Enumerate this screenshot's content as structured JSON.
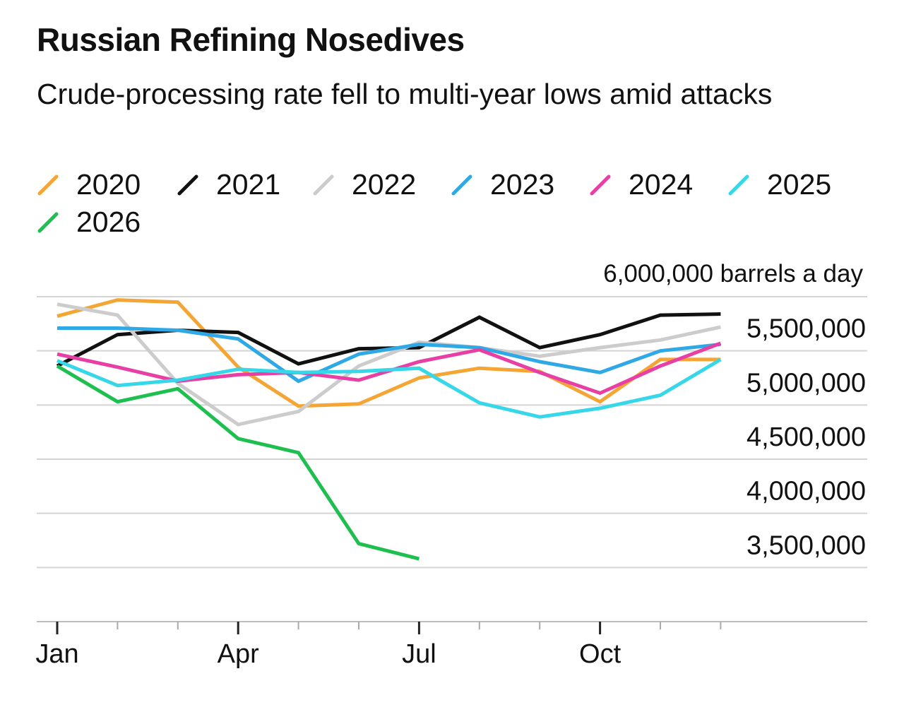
{
  "chart_data": {
    "type": "line",
    "title": "Russian Refining Nosedives",
    "subtitle": "Crude-processing rate fell to multi-year lows amid attacks",
    "unit_label": "6,000,000 barrels a day",
    "x_tick_labels": [
      "Jan",
      "Apr",
      "Jul",
      "Oct"
    ],
    "x_months": [
      "Jan",
      "Feb",
      "Mar",
      "Apr",
      "May",
      "Jun",
      "Jul",
      "Aug",
      "Sep",
      "Oct",
      "Nov",
      "Dec"
    ],
    "y_tick_labels": [
      "5,500,000",
      "5,000,000",
      "4,500,000",
      "4,000,000",
      "3,500,000"
    ],
    "ylim": [
      3000000,
      6000000
    ],
    "y_ticks": [
      6000000,
      5500000,
      5000000,
      4500000,
      4000000,
      3500000
    ],
    "grid": true,
    "legend_position": "top",
    "series": [
      {
        "name": "2020",
        "color": "#F4A534",
        "x": [
          "Jan",
          "Feb",
          "Mar",
          "Apr",
          "May",
          "Jun",
          "Jul",
          "Aug",
          "Sep",
          "Oct",
          "Nov",
          "Dec"
        ],
        "values": [
          5820000,
          5970000,
          5950000,
          5350000,
          4990000,
          5010000,
          5250000,
          5340000,
          5310000,
          5030000,
          5420000,
          5420000
        ]
      },
      {
        "name": "2021",
        "color": "#111111",
        "x": [
          "Jan",
          "Feb",
          "Mar",
          "Apr",
          "May",
          "Jun",
          "Jul",
          "Aug",
          "Sep",
          "Oct",
          "Nov",
          "Dec"
        ],
        "values": [
          5360000,
          5650000,
          5690000,
          5670000,
          5380000,
          5520000,
          5530000,
          5810000,
          5530000,
          5650000,
          5830000,
          5840000
        ]
      },
      {
        "name": "2022",
        "color": "#CCCCCC",
        "x": [
          "Jan",
          "Feb",
          "Mar",
          "Apr",
          "May",
          "Jun",
          "Jul",
          "Aug",
          "Sep",
          "Oct",
          "Nov",
          "Dec"
        ],
        "values": [
          5930000,
          5830000,
          5200000,
          4820000,
          4940000,
          5360000,
          5580000,
          5530000,
          5450000,
          5530000,
          5600000,
          5720000
        ]
      },
      {
        "name": "2023",
        "color": "#2FA8E6",
        "x": [
          "Jan",
          "Feb",
          "Mar",
          "Apr",
          "May",
          "Jun",
          "Jul",
          "Aug",
          "Sep",
          "Oct",
          "Nov",
          "Dec"
        ],
        "values": [
          5710000,
          5710000,
          5690000,
          5610000,
          5220000,
          5470000,
          5560000,
          5530000,
          5400000,
          5300000,
          5500000,
          5560000
        ]
      },
      {
        "name": "2024",
        "color": "#E83FA5",
        "x": [
          "Jan",
          "Feb",
          "Mar",
          "Apr",
          "May",
          "Jun",
          "Jul",
          "Aug",
          "Sep",
          "Oct",
          "Nov",
          "Dec"
        ],
        "values": [
          5470000,
          5350000,
          5220000,
          5280000,
          5300000,
          5230000,
          5400000,
          5510000,
          5300000,
          5110000,
          5360000,
          5570000
        ]
      },
      {
        "name": "2025",
        "color": "#36D7E8",
        "x": [
          "Jan",
          "Feb",
          "Mar",
          "Apr",
          "May",
          "Jun",
          "Jul",
          "Aug",
          "Sep",
          "Oct",
          "Nov",
          "Dec"
        ],
        "values": [
          5410000,
          5180000,
          5230000,
          5330000,
          5300000,
          5310000,
          5340000,
          5020000,
          4890000,
          4970000,
          5090000,
          5420000
        ]
      },
      {
        "name": "2026",
        "color": "#1DBF4E",
        "x": [
          "Jan",
          "Feb",
          "Mar",
          "Apr",
          "May",
          "Jun",
          "Jul"
        ],
        "values": [
          5360000,
          5030000,
          5150000,
          4690000,
          4560000,
          3720000,
          3580000
        ]
      }
    ]
  }
}
